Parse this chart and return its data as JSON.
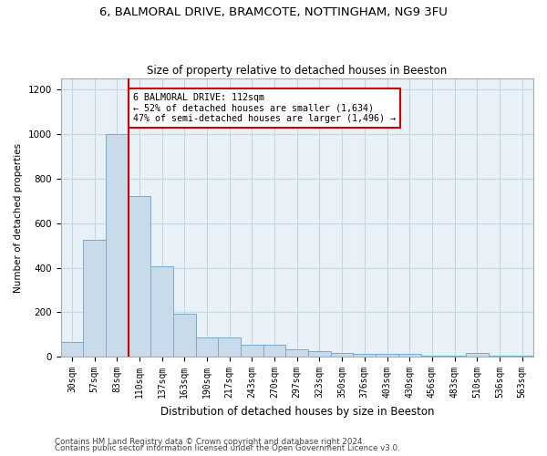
{
  "title_line1": "6, BALMORAL DRIVE, BRAMCOTE, NOTTINGHAM, NG9 3FU",
  "title_line2": "Size of property relative to detached houses in Beeston",
  "xlabel": "Distribution of detached houses by size in Beeston",
  "ylabel": "Number of detached properties",
  "categories": [
    "30sqm",
    "57sqm",
    "83sqm",
    "110sqm",
    "137sqm",
    "163sqm",
    "190sqm",
    "217sqm",
    "243sqm",
    "270sqm",
    "297sqm",
    "323sqm",
    "350sqm",
    "376sqm",
    "403sqm",
    "430sqm",
    "456sqm",
    "483sqm",
    "510sqm",
    "536sqm",
    "563sqm"
  ],
  "values": [
    65,
    525,
    1000,
    720,
    405,
    195,
    85,
    85,
    55,
    55,
    35,
    25,
    18,
    14,
    14,
    12,
    5,
    4,
    18,
    3,
    3
  ],
  "bar_color": "#c9daea",
  "bar_edge_color": "#7aaac8",
  "highlight_bar_index": 3,
  "highlight_line_color": "#cc0000",
  "annotation_text": "6 BALMORAL DRIVE: 112sqm\n← 52% of detached houses are smaller (1,634)\n47% of semi-detached houses are larger (1,496) →",
  "annotation_box_color": "#ffffff",
  "annotation_box_edge": "#cc0000",
  "footnote1": "Contains HM Land Registry data © Crown copyright and database right 2024.",
  "footnote2": "Contains public sector information licensed under the Open Government Licence v3.0.",
  "ylim": [
    0,
    1250
  ],
  "yticks": [
    0,
    200,
    400,
    600,
    800,
    1000,
    1200
  ],
  "bg_color": "#ffffff",
  "plot_bg_color": "#e8f0f8",
  "grid_color": "#c8d4e0"
}
